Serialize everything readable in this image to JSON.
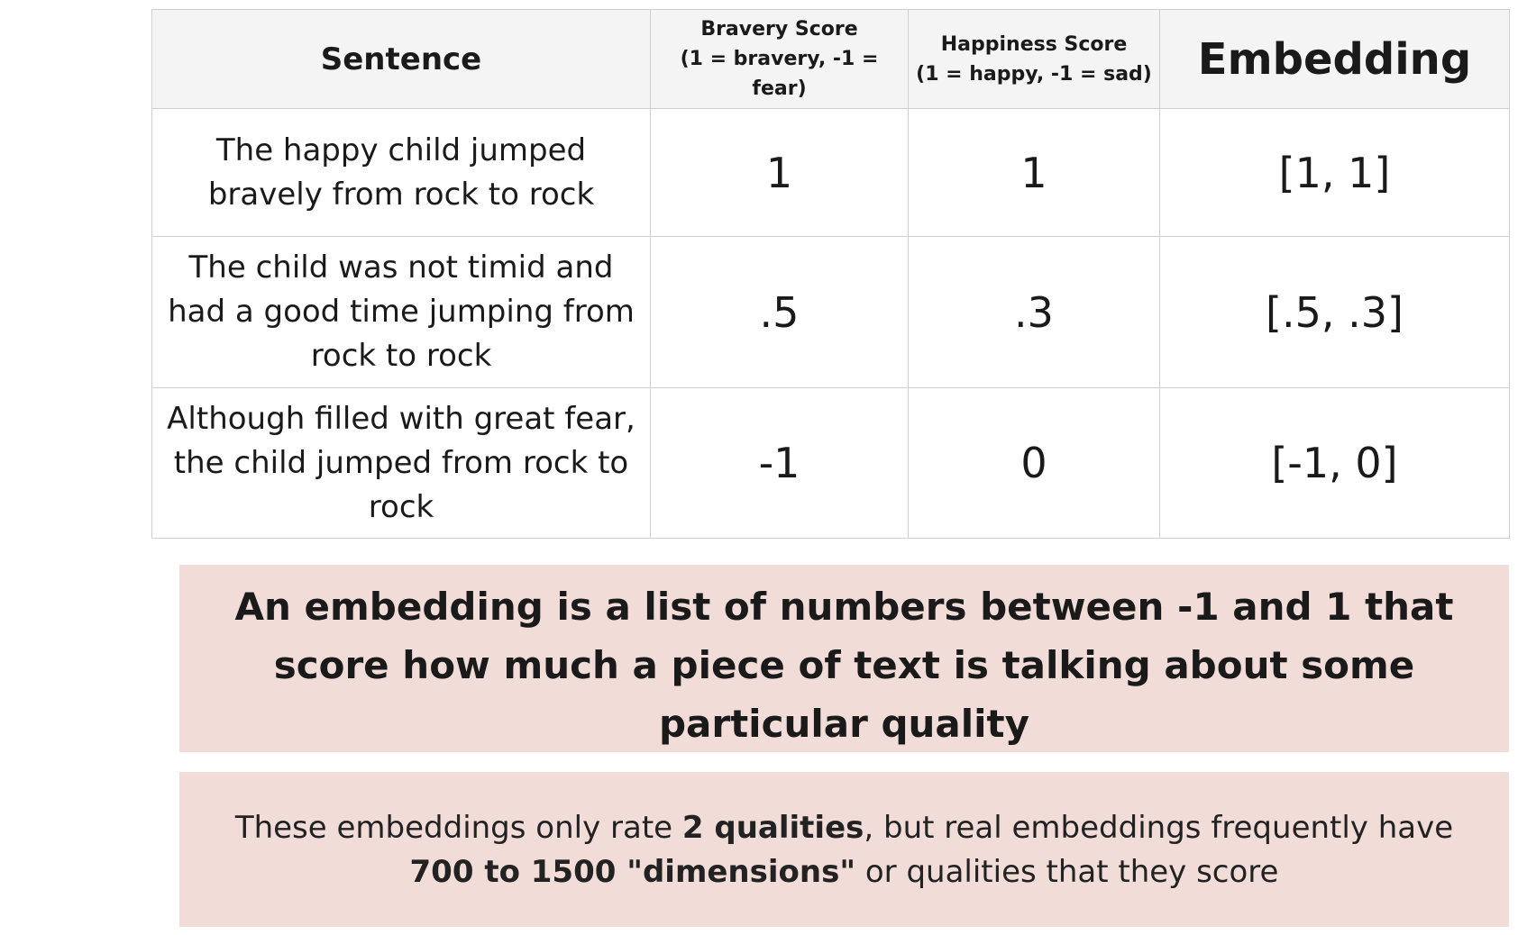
{
  "table": {
    "headers": {
      "sentence": "Sentence",
      "bravery_title": "Bravery Score",
      "bravery_scale": "(1 = bravery, -1 = fear)",
      "happiness_title": "Happiness Score",
      "happiness_scale": "(1 = happy, -1 = sad)",
      "embedding": "Embedding"
    },
    "rows": [
      {
        "sentence": "The happy child jumped bravely from rock to rock",
        "bravery": "1",
        "happiness": "1",
        "embedding": "[1, 1]"
      },
      {
        "sentence": "The child was not timid and had a good time jumping from rock to rock",
        "bravery": ".5",
        "happiness": ".3",
        "embedding": "[.5, .3]"
      },
      {
        "sentence": "Although filled with great fear, the child jumped from rock to rock",
        "bravery": "-1",
        "happiness": "0",
        "embedding": "[-1, 0]"
      }
    ]
  },
  "definition": {
    "text": "An embedding is a list of numbers between -1 and 1 that score how much a piece of text is talking about some particular quality"
  },
  "note": {
    "part1": "These embeddings only rate ",
    "bold1": "2 qualities",
    "part2": ", but real embeddings frequently have ",
    "bold2": "700 to 1500 \"dimensions\"",
    "part3": " or qualities that they score"
  },
  "colors": {
    "box_background": "#f1dcd8",
    "header_background": "#f4f4f4",
    "border": "#cfcfcf"
  }
}
